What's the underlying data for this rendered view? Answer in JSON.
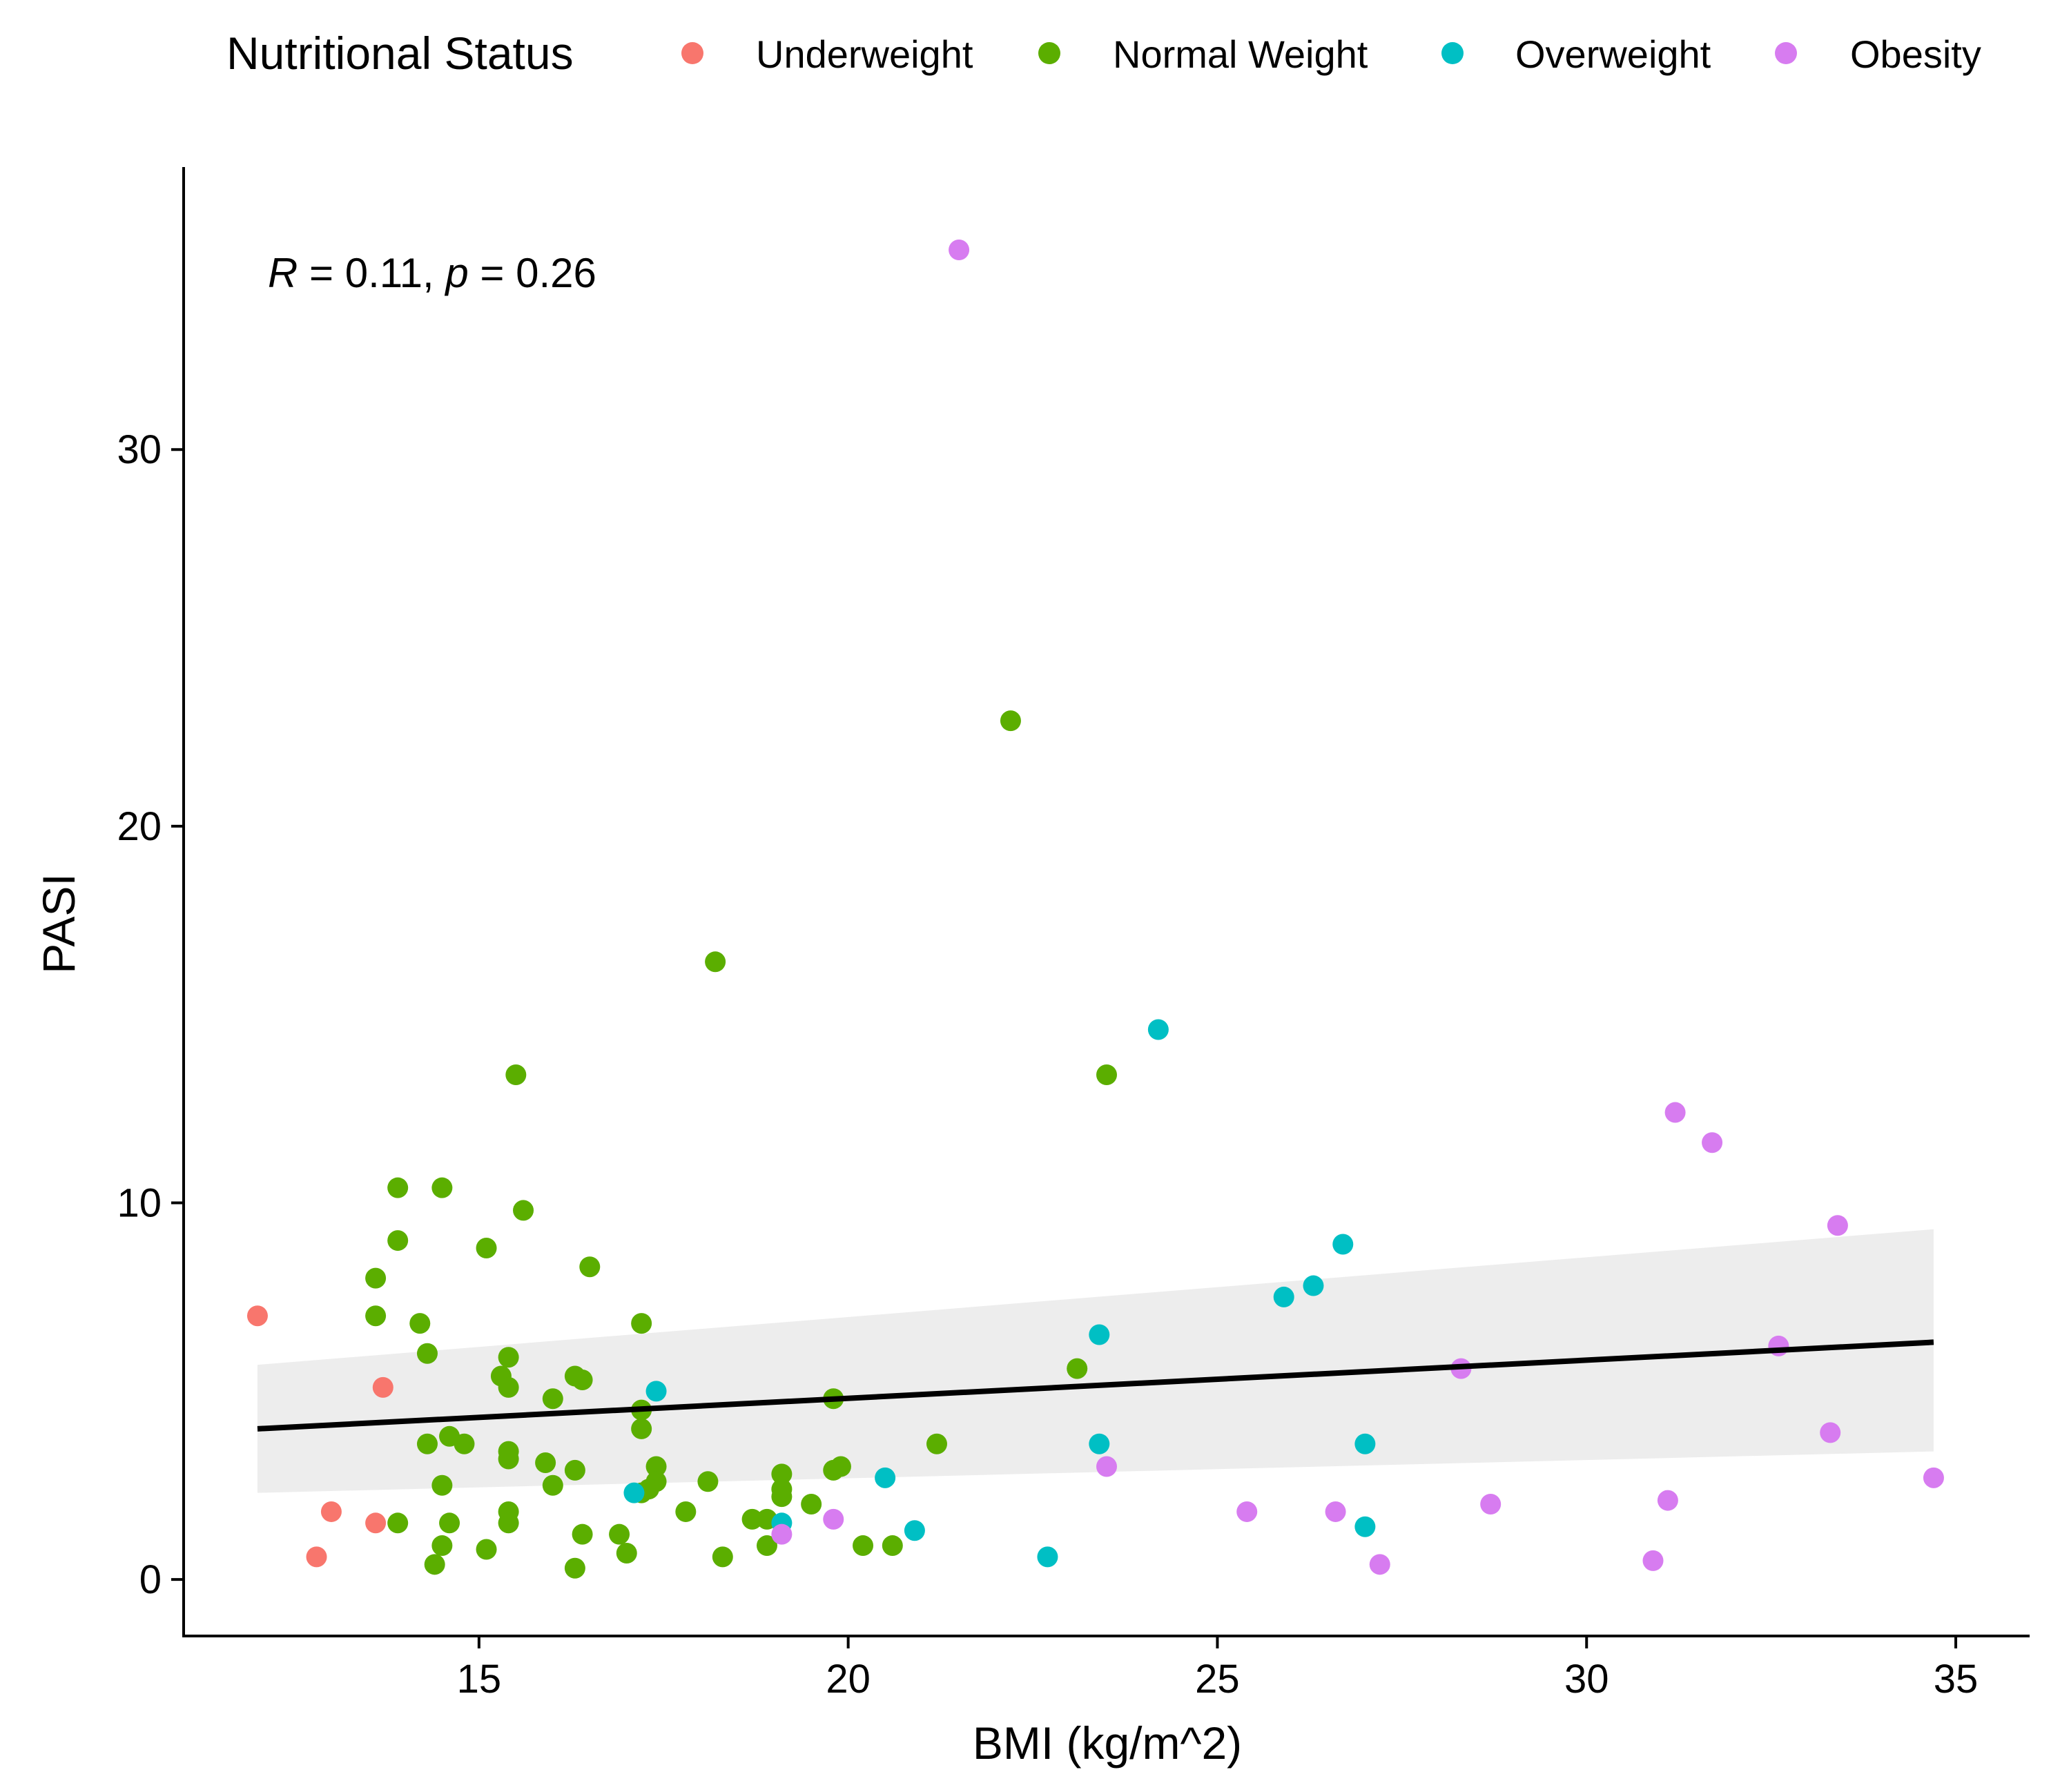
{
  "chart_data": {
    "type": "scatter",
    "title": "",
    "xlabel": "BMI (kg/m^2)",
    "ylabel": "PASI",
    "xlim": [
      11.0,
      36.0
    ],
    "ylim": [
      -1.5,
      37.5
    ],
    "x_ticks": [
      15,
      20,
      25,
      30,
      35
    ],
    "y_ticks": [
      0,
      10,
      20,
      30
    ],
    "grid": false,
    "legend": {
      "title": "Nutritional Status",
      "position": "top",
      "entries": [
        "Underweight",
        "Normal Weight",
        "Overweight",
        "Obesity"
      ]
    },
    "colors": {
      "Underweight": "#F8766D",
      "Normal Weight": "#5BAE00",
      "Overweight": "#00BFC4",
      "Obesity": "#D77CF0"
    },
    "annotation": {
      "R_label": "R",
      "R_value": " = 0.11, ",
      "p_label": "p",
      "p_value": " = 0.26"
    },
    "regression": {
      "x": [
        12.0,
        34.7
      ],
      "y": [
        4.0,
        6.3
      ],
      "ci_low": [
        2.3,
        3.4
      ],
      "ci_high": [
        5.7,
        9.3
      ],
      "line_color": "#000000",
      "band_color": "#EBEBEB"
    },
    "series": [
      {
        "name": "Underweight",
        "points": [
          [
            12.0,
            7.0
          ],
          [
            13.0,
            1.8
          ],
          [
            12.8,
            0.6
          ],
          [
            13.6,
            1.5
          ],
          [
            13.7,
            5.1
          ]
        ]
      },
      {
        "name": "Normal Weight",
        "points": [
          [
            22.2,
            22.8
          ],
          [
            18.2,
            16.4
          ],
          [
            15.5,
            13.4
          ],
          [
            23.5,
            13.4
          ],
          [
            13.9,
            10.4
          ],
          [
            14.5,
            10.4
          ],
          [
            15.6,
            9.8
          ],
          [
            13.9,
            9.0
          ],
          [
            15.1,
            8.8
          ],
          [
            16.5,
            8.3
          ],
          [
            13.6,
            8.0
          ],
          [
            13.6,
            7.0
          ],
          [
            14.2,
            6.8
          ],
          [
            17.2,
            6.8
          ],
          [
            14.3,
            6.0
          ],
          [
            15.4,
            5.9
          ],
          [
            15.3,
            5.4
          ],
          [
            16.3,
            5.4
          ],
          [
            16.4,
            5.3
          ],
          [
            15.4,
            5.1
          ],
          [
            16.0,
            4.8
          ],
          [
            19.8,
            4.8
          ],
          [
            17.2,
            4.5
          ],
          [
            17.2,
            4.0
          ],
          [
            14.6,
            3.8
          ],
          [
            14.3,
            3.6
          ],
          [
            14.8,
            3.6
          ],
          [
            21.2,
            3.6
          ],
          [
            15.4,
            3.4
          ],
          [
            15.4,
            3.2
          ],
          [
            15.9,
            3.1
          ],
          [
            17.4,
            3.0
          ],
          [
            16.3,
            2.9
          ],
          [
            19.9,
            3.0
          ],
          [
            19.8,
            2.9
          ],
          [
            19.1,
            2.8
          ],
          [
            18.1,
            2.6
          ],
          [
            17.4,
            2.6
          ],
          [
            16.0,
            2.5
          ],
          [
            14.5,
            2.5
          ],
          [
            19.1,
            2.4
          ],
          [
            17.3,
            2.4
          ],
          [
            17.2,
            2.3
          ],
          [
            19.1,
            2.2
          ],
          [
            19.5,
            2.0
          ],
          [
            15.4,
            1.8
          ],
          [
            17.8,
            1.8
          ],
          [
            18.7,
            1.6
          ],
          [
            18.9,
            1.6
          ],
          [
            13.9,
            1.5
          ],
          [
            14.6,
            1.5
          ],
          [
            15.4,
            1.5
          ],
          [
            16.4,
            1.2
          ],
          [
            16.9,
            1.2
          ],
          [
            14.5,
            0.9
          ],
          [
            15.1,
            0.8
          ],
          [
            18.9,
            0.9
          ],
          [
            20.2,
            0.9
          ],
          [
            20.6,
            0.9
          ],
          [
            17.0,
            0.7
          ],
          [
            18.3,
            0.6
          ],
          [
            14.4,
            0.4
          ],
          [
            16.3,
            0.3
          ],
          [
            23.1,
            5.6
          ]
        ]
      },
      {
        "name": "Overweight",
        "points": [
          [
            24.2,
            14.6
          ],
          [
            26.7,
            8.9
          ],
          [
            26.3,
            7.8
          ],
          [
            25.9,
            7.5
          ],
          [
            23.4,
            6.5
          ],
          [
            17.4,
            5.0
          ],
          [
            23.4,
            3.6
          ],
          [
            27.0,
            3.6
          ],
          [
            20.5,
            2.7
          ],
          [
            17.1,
            2.3
          ],
          [
            19.1,
            1.5
          ],
          [
            27.0,
            1.4
          ],
          [
            20.9,
            1.3
          ],
          [
            22.7,
            0.6
          ]
        ]
      },
      {
        "name": "Obesity",
        "points": [
          [
            21.5,
            35.3
          ],
          [
            31.2,
            12.4
          ],
          [
            31.7,
            11.6
          ],
          [
            33.4,
            9.4
          ],
          [
            32.6,
            6.2
          ],
          [
            28.3,
            5.6
          ],
          [
            33.3,
            3.9
          ],
          [
            23.5,
            3.0
          ],
          [
            34.7,
            2.7
          ],
          [
            31.1,
            2.1
          ],
          [
            28.7,
            2.0
          ],
          [
            25.4,
            1.8
          ],
          [
            26.6,
            1.8
          ],
          [
            19.8,
            1.6
          ],
          [
            19.1,
            1.2
          ],
          [
            27.2,
            0.4
          ],
          [
            30.9,
            0.5
          ]
        ]
      }
    ]
  }
}
